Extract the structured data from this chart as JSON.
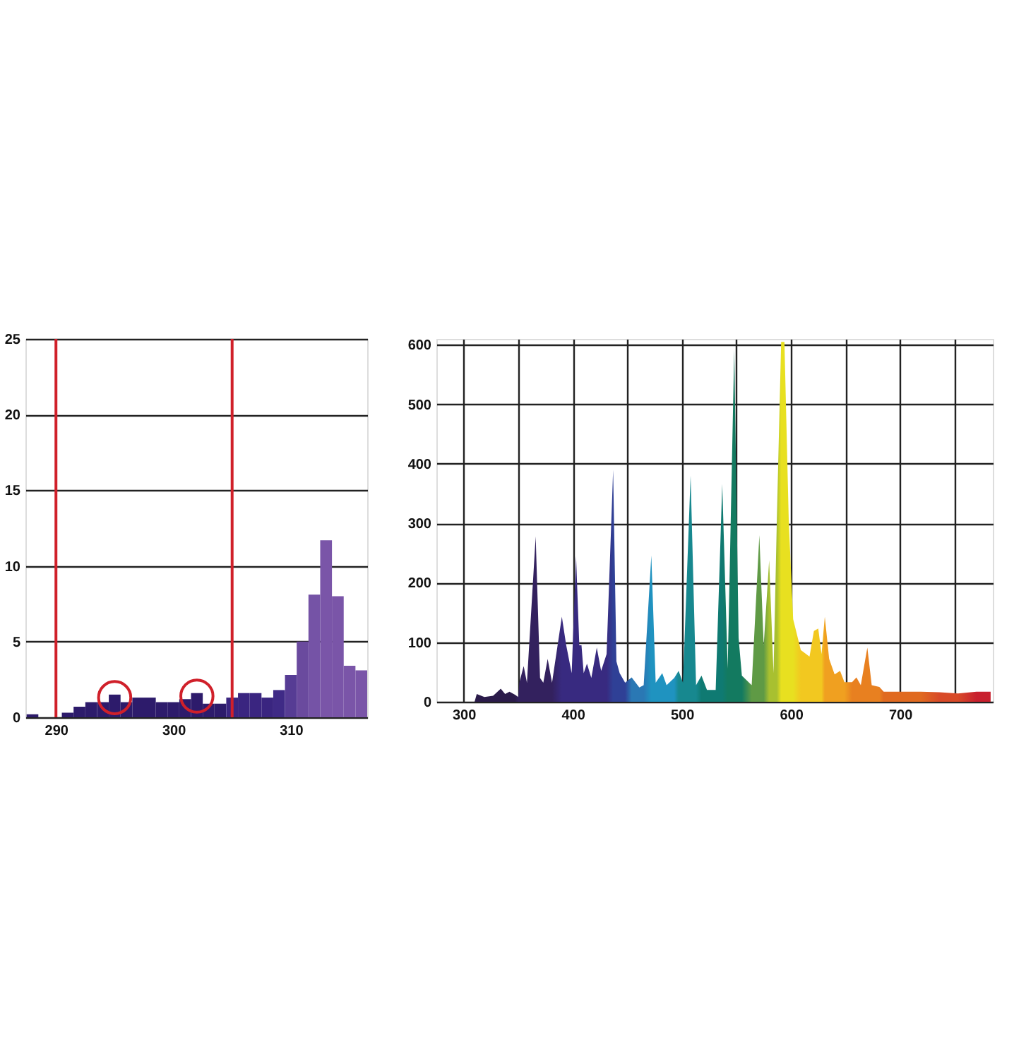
{
  "chart_data": [
    {
      "type": "histogram",
      "bins": [
        287.5,
        288.5,
        289.5,
        290.5,
        291.5,
        292.5,
        293.5,
        294.5,
        295.5,
        296.5,
        297.5,
        298.5,
        299.5,
        300.5,
        301.5,
        302.5,
        303.5,
        304.5,
        305.5,
        306.5,
        307.5,
        308.5,
        309.5,
        310.5,
        311.5,
        312.5,
        313.5,
        314.5,
        315.5,
        316.5
      ],
      "values": [
        0.2,
        0,
        0,
        0.3,
        0.7,
        1.0,
        1.0,
        1.5,
        1.0,
        1.3,
        1.3,
        1.0,
        1.0,
        1.2,
        1.6,
        0.9,
        0.9,
        1.3,
        1.6,
        1.6,
        1.3,
        1.8,
        2.8,
        5.0,
        8.1,
        11.7,
        8.0,
        3.4,
        3.1
      ],
      "colors": [
        "#2d1b6b",
        "#2d1b6b",
        "#2d1b6b",
        "#2d1b6b",
        "#2d1b6b",
        "#2d1b6b",
        "#2d1b6b",
        "#2d1b6b",
        "#2d1b6b",
        "#2d1b6b",
        "#2d1b6b",
        "#2d1b6b",
        "#2d1b6b",
        "#2d1b6b",
        "#2d1b6b",
        "#2d1b6b",
        "#2d1b6b",
        "#3a2580",
        "#3a2580",
        "#3a2580",
        "#3a2580",
        "#3f2a86",
        "#563c94",
        "#6a4a9e",
        "#7553a6",
        "#7a55a8",
        "#7a55a8",
        "#7a55a8",
        "#7a55a8"
      ],
      "xlim": [
        287.4,
        316.5
      ],
      "xticks": [
        290,
        300,
        310
      ],
      "ylim": [
        0,
        25
      ],
      "yticks": [
        0,
        5,
        10,
        15,
        20,
        25
      ],
      "grid": "y",
      "ref_lines": [
        {
          "axis": "x",
          "value": 290,
          "color": "#d0202a"
        },
        {
          "axis": "x",
          "value": 305,
          "color": "#d0202a"
        }
      ],
      "series": [
        {
          "type": "scatter",
          "x": [
            295,
            302
          ],
          "values": [
            1.3,
            1.4
          ],
          "color": "#d0202a",
          "marker": "circle"
        }
      ]
    },
    {
      "type": "area",
      "x": [
        310,
        312,
        319,
        327,
        334,
        338,
        342,
        347,
        350,
        351,
        355,
        358,
        366,
        370,
        373,
        377,
        381,
        390,
        394,
        399,
        403,
        406,
        408,
        410,
        413,
        417,
        422,
        426,
        431,
        437,
        440,
        443,
        448,
        454,
        461,
        465,
        472,
        476,
        482,
        486,
        493,
        497,
        501,
        508,
        513,
        518,
        523,
        527,
        531,
        537,
        542,
        548,
        552,
        555,
        564,
        571,
        575,
        580,
        584,
        587,
        591,
        594,
        598,
        602,
        609,
        617,
        621,
        625,
        628,
        631,
        635,
        640,
        645,
        649,
        656,
        660,
        664,
        670,
        674,
        681,
        685,
        706,
        719,
        736,
        753,
        770,
        783
      ],
      "values": [
        0,
        13,
        8,
        10,
        22,
        13,
        17,
        12,
        8,
        32,
        60,
        32,
        278,
        40,
        32,
        72,
        32,
        143,
        95,
        48,
        245,
        95,
        95,
        48,
        64,
        40,
        91,
        52,
        80,
        390,
        68,
        48,
        32,
        41,
        24,
        28,
        246,
        32,
        48,
        28,
        40,
        52,
        32,
        380,
        28,
        44,
        20,
        20,
        20,
        366,
        56,
        592,
        107,
        44,
        28,
        280,
        95,
        238,
        48,
        302,
        605,
        605,
        302,
        139,
        87,
        76,
        119,
        123,
        80,
        143,
        72,
        46,
        52,
        33,
        33,
        41,
        28,
        91,
        28,
        25,
        17,
        17,
        17,
        16,
        14,
        17,
        17
      ],
      "colors": [
        "#2b1b4a",
        "#2b1b4a",
        "#2b1b4a",
        "#2b1b4a",
        "#2b1b4a",
        "#2b1b4a",
        "#2b1b4a",
        "#2b1b4a",
        "#33215e",
        "#33215e",
        "#33215e",
        "#33215e",
        "#33215e",
        "#33215e",
        "#33215e",
        "#33215e",
        "#33215e",
        "#382a80",
        "#382a80",
        "#382a80",
        "#382a80",
        "#382a80",
        "#382a80",
        "#382a80",
        "#382a80",
        "#382a80",
        "#382a80",
        "#382a80",
        "#382a80",
        "#2f4096",
        "#2f4096",
        "#2f4096",
        "#2f4096",
        "#2a78b4",
        "#2a78b4",
        "#2a78b4",
        "#1f93c0",
        "#1f93c0",
        "#1f93c0",
        "#1f93c0",
        "#1f93c0",
        "#17888f",
        "#17888f",
        "#17888f",
        "#17888f",
        "#0f7a72",
        "#0f7a72",
        "#0f7a72",
        "#0f7a72",
        "#0f7a72",
        "#137a60",
        "#137a60",
        "#137a60",
        "#137a60",
        "#5f9a45",
        "#5f9a45",
        "#5f9a45",
        "#a8c030",
        "#a8c030",
        "#a8c030",
        "#e8e020",
        "#e8e020",
        "#e8e020",
        "#e8e020",
        "#f2c820",
        "#f2c820",
        "#f2c820",
        "#f2c820",
        "#f2c820",
        "#f0a020",
        "#f0a020",
        "#f0a020",
        "#f0a020",
        "#f0a020",
        "#e88020",
        "#e88020",
        "#e88020",
        "#e88020",
        "#e88020",
        "#e88020",
        "#e06a20",
        "#e06a20",
        "#e06a20",
        "#d84a28",
        "#d84a28",
        "#c8202e",
        "#c8202e"
      ],
      "xlim": [
        275,
        785
      ],
      "xticks": [
        {
          "value": 300,
          "label": "300"
        },
        {
          "value": 350,
          "label": null
        },
        {
          "value": 400,
          "label": "400"
        },
        {
          "value": 450,
          "label": null
        },
        {
          "value": 500,
          "label": "500"
        },
        {
          "value": 550,
          "label": null
        },
        {
          "value": 600,
          "label": "600"
        },
        {
          "value": 650,
          "label": null
        },
        {
          "value": 700,
          "label": "700"
        },
        {
          "value": 750,
          "label": null
        }
      ],
      "ylim": [
        0,
        610
      ],
      "yticks": [
        0,
        100,
        200,
        300,
        400,
        500,
        600
      ],
      "grid": true
    }
  ]
}
